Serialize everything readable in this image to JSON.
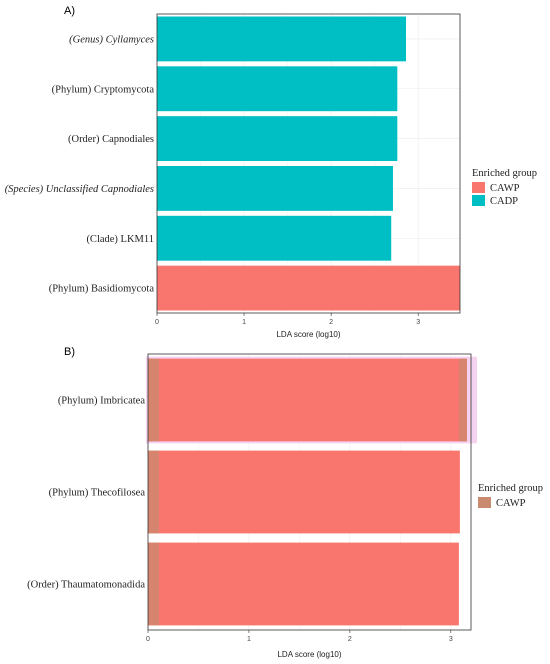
{
  "colors": {
    "CAWP": "#F8766D",
    "CADP": "#00BFC4",
    "CAWP_key_b": "#C98A70",
    "overlay": "#F5D3F0",
    "grid": "#EBEBEB",
    "frame": "#333333"
  },
  "chart_data": [
    {
      "type": "bar",
      "orientation": "horizontal",
      "panel_label": "A)",
      "categories": [
        {
          "label": "(Genus) Cyllamyces",
          "italic": true
        },
        {
          "label": "(Phylum) Cryptomycota",
          "italic": false
        },
        {
          "label": "(Order) Capnodiales",
          "italic": false
        },
        {
          "label": "(Species) Unclassified Capnodiales",
          "italic": true
        },
        {
          "label": "(Clade) LKM11",
          "italic": false
        },
        {
          "label": "(Phylum) Basidiomycota",
          "italic": false
        }
      ],
      "values": [
        2.86,
        2.76,
        2.76,
        2.71,
        2.69,
        3.48
      ],
      "groups": [
        "CADP",
        "CADP",
        "CADP",
        "CADP",
        "CADP",
        "CAWP"
      ],
      "xlim": [
        0,
        3.48
      ],
      "xticks": [
        "0",
        "1",
        "2",
        "3"
      ],
      "xlabel": "LDA score (log10)",
      "grid": true,
      "legend": {
        "title": "Enriched group",
        "position": "right",
        "entries": [
          {
            "name": "CAWP",
            "color": "#F8766D"
          },
          {
            "name": "CADP",
            "color": "#00BFC4"
          }
        ]
      }
    },
    {
      "type": "bar",
      "orientation": "horizontal",
      "panel_label": "B)",
      "categories": [
        {
          "label": "(Phylum) Imbricatea",
          "italic": false
        },
        {
          "label": "(Phylum) Thecofilosea",
          "italic": false
        },
        {
          "label": "(Order) Thaumatomonadida",
          "italic": false
        }
      ],
      "values": [
        3.16,
        3.09,
        3.08
      ],
      "groups": [
        "CAWP",
        "CAWP",
        "CAWP"
      ],
      "xlim": [
        0,
        3.2
      ],
      "xticks": [
        "0",
        "1",
        "2",
        "3"
      ],
      "xlabel": "LDA score (log10)",
      "grid": true,
      "legend": {
        "title": "Enriched group",
        "position": "right",
        "entries": [
          {
            "name": "CAWP",
            "color": "#C98A70"
          }
        ]
      }
    }
  ]
}
